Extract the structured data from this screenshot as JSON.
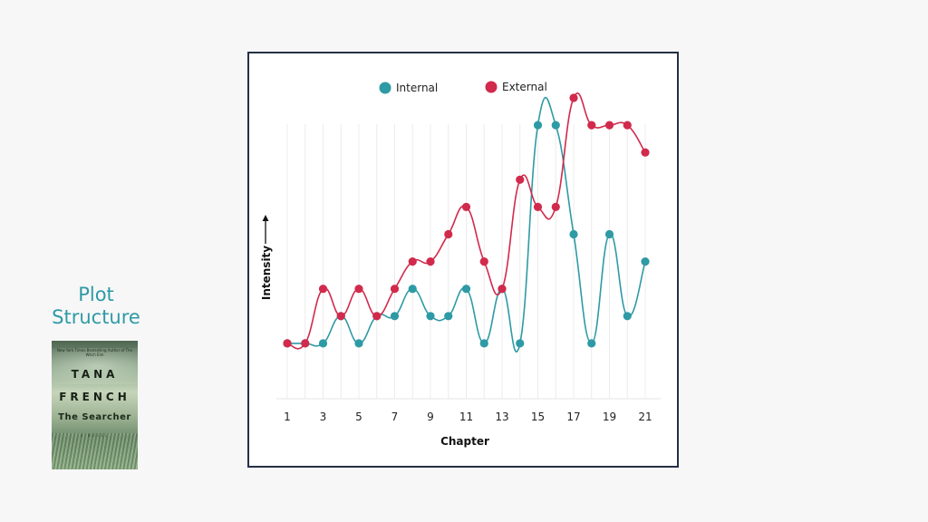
{
  "sidebar": {
    "title_line1": "Plot",
    "title_line2": "Structure",
    "book": {
      "tagline": "New York Times Bestselling Author of The Witch Elm",
      "author_line1": "TANA",
      "author_line2": "FRENCH",
      "title": "The Searcher",
      "subtitle": "A NOVEL"
    }
  },
  "chart_data": {
    "type": "line",
    "x": [
      1,
      2,
      3,
      4,
      5,
      6,
      7,
      8,
      9,
      10,
      11,
      12,
      13,
      14,
      15,
      16,
      17,
      18,
      19,
      20,
      21
    ],
    "xticks": [
      "1",
      "3",
      "5",
      "7",
      "9",
      "11",
      "13",
      "15",
      "17",
      "19",
      "21"
    ],
    "xlabel": "Chapter",
    "ylabel": "Intensity",
    "ylim": [
      0,
      10
    ],
    "grid": "vertical",
    "legend": "top-center",
    "series": [
      {
        "name": "Internal",
        "color": "#2e9aa5",
        "values": [
          1,
          1,
          1,
          2,
          1,
          2,
          2,
          3,
          2,
          2,
          3,
          1,
          3,
          1,
          9,
          9,
          5,
          1,
          5,
          2,
          4
        ]
      },
      {
        "name": "External",
        "color": "#d12a4c",
        "values": [
          1,
          1,
          3,
          2,
          3,
          2,
          3,
          4,
          4,
          5,
          6,
          4,
          3,
          7,
          6,
          6,
          10,
          9,
          9,
          9,
          8
        ]
      }
    ]
  }
}
